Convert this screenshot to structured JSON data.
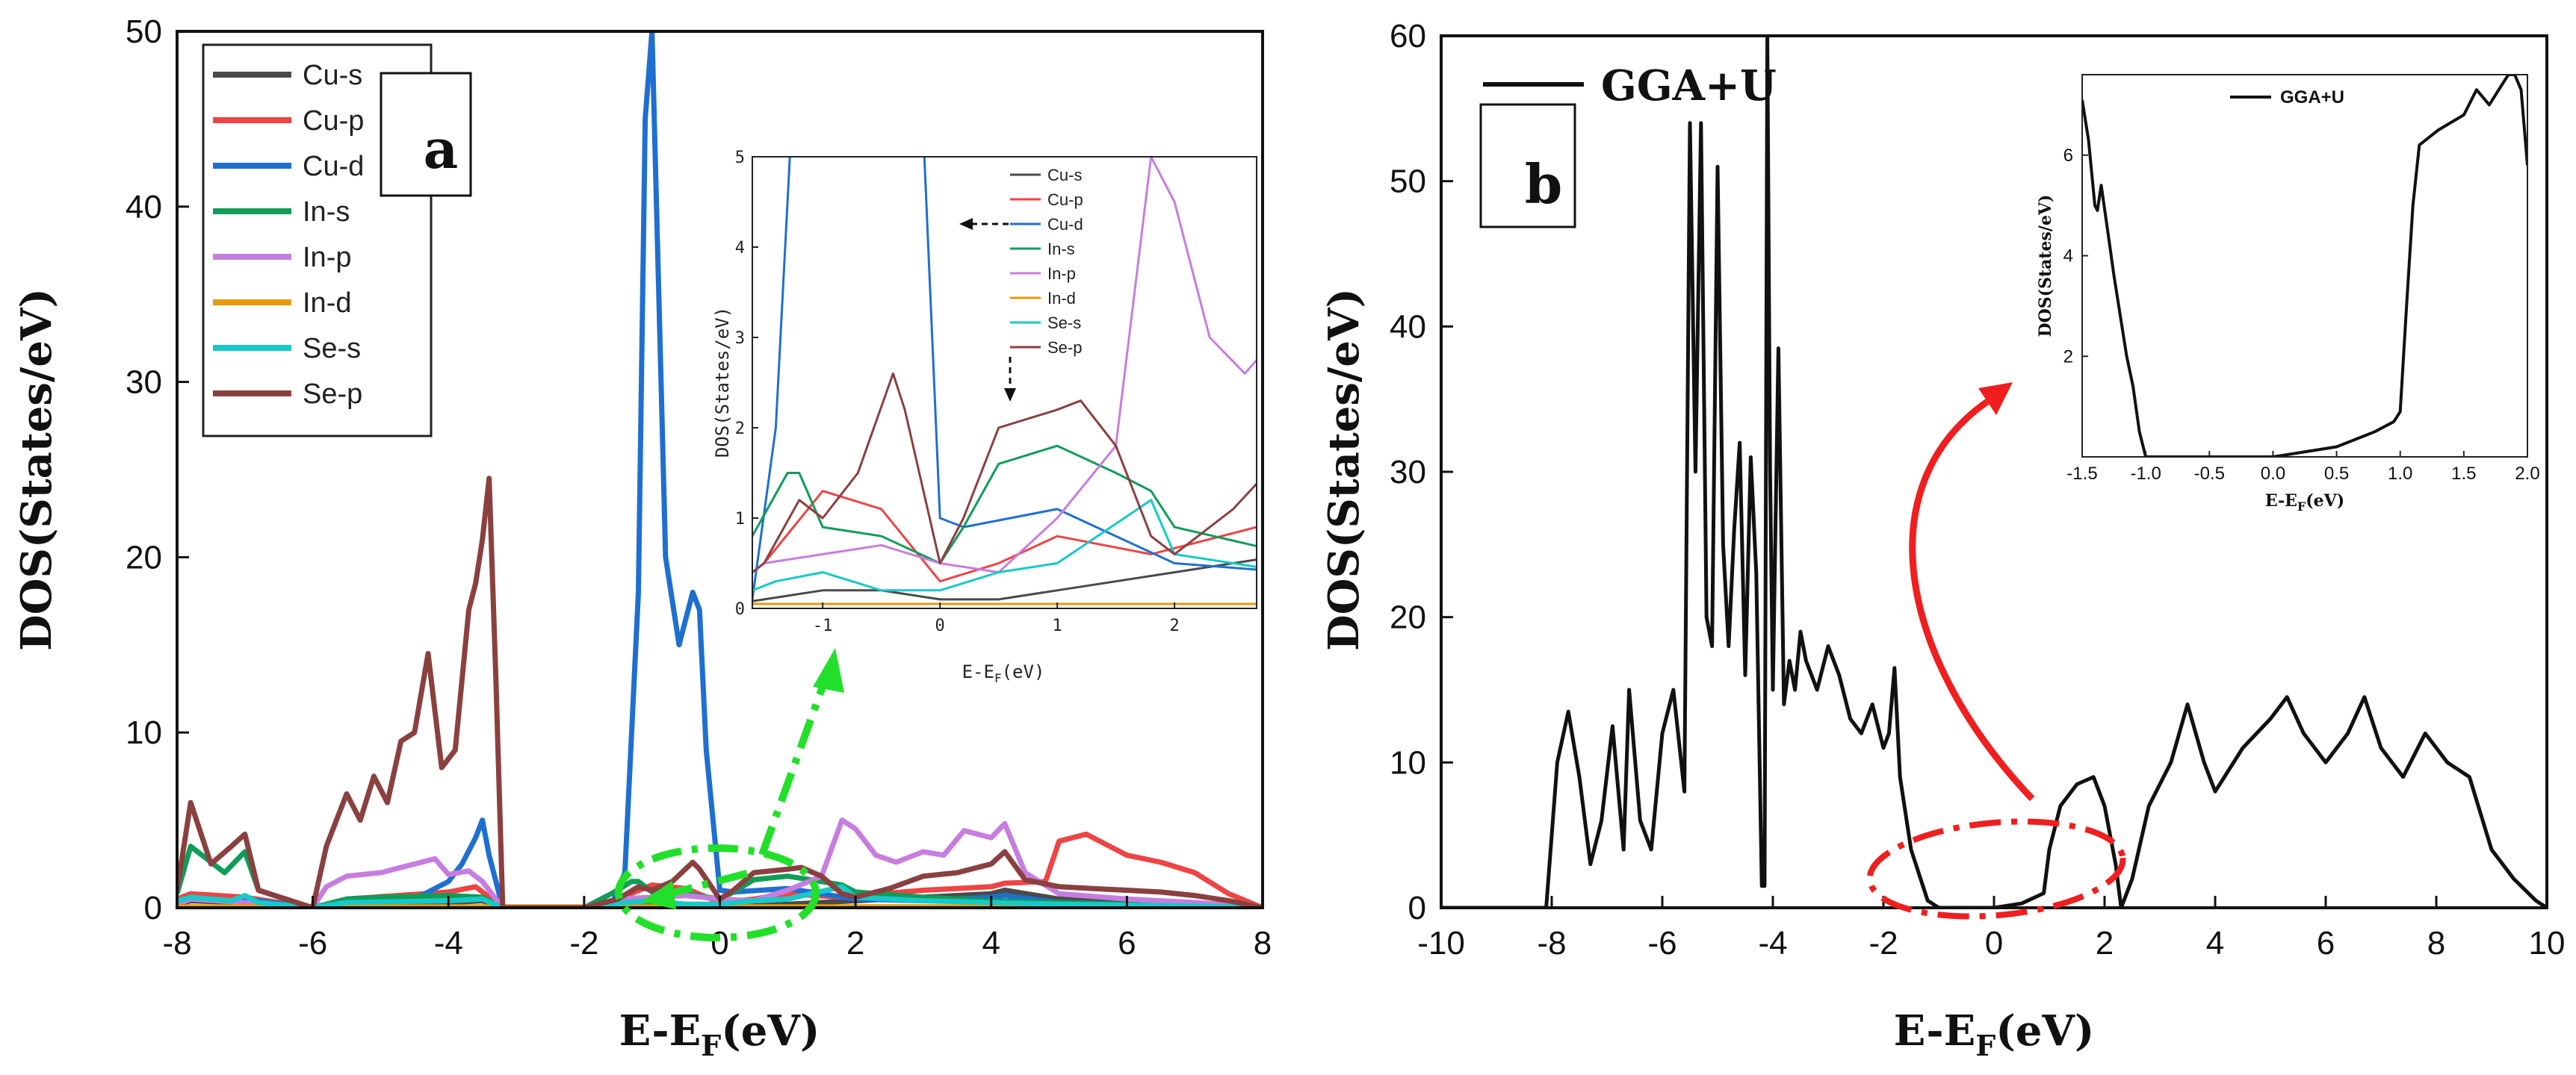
{
  "chart_data": [
    {
      "id": "panel-a",
      "type": "line",
      "panel_label": "a",
      "xlabel": "E-E",
      "xlabel_sub": "F",
      "xlabel_unit": "(eV)",
      "ylabel": "DOS(States/eV)",
      "xlim": [
        -8,
        8
      ],
      "ylim": [
        0,
        50
      ],
      "xticks": [
        -8,
        -6,
        -4,
        -2,
        0,
        2,
        4,
        6,
        8
      ],
      "yticks": [
        0,
        10,
        20,
        30,
        40,
        50
      ],
      "legend_position": "top-left",
      "series": [
        {
          "name": "Cu-s",
          "color": "#4a4a4a",
          "x": [
            -8,
            -7.8,
            -7,
            -6,
            -5.5,
            -4,
            -3.5,
            -3.2,
            -2,
            -1.5,
            -1,
            -0.5,
            0,
            0.5,
            1,
            2,
            3,
            4,
            4.2,
            5,
            6,
            7,
            8
          ],
          "y": [
            0.2,
            0.4,
            0.3,
            0,
            0.3,
            0.3,
            0.4,
            0,
            0,
            0.1,
            0.2,
            0.2,
            0.1,
            0.1,
            0.2,
            0.4,
            0.6,
            0.8,
            1.0,
            0.5,
            0.4,
            0.3,
            0
          ]
        },
        {
          "name": "Cu-p",
          "color": "#ef4444",
          "x": [
            -8,
            -7.8,
            -7,
            -6,
            -5.5,
            -4,
            -3.6,
            -3.2,
            -2,
            -1.5,
            -1,
            -0.5,
            0,
            0.5,
            1,
            1.8,
            3,
            4,
            4.2,
            4.8,
            5,
            5.4,
            6,
            6.5,
            7,
            7.5,
            8
          ],
          "y": [
            0.5,
            0.8,
            0.6,
            0,
            0.5,
            0.9,
            1.2,
            0,
            0,
            0.5,
            1.3,
            1.1,
            0.3,
            0.5,
            0.8,
            0.6,
            1.0,
            1.2,
            1.4,
            1.5,
            3.8,
            4.2,
            3.0,
            2.6,
            2.0,
            0.8,
            0
          ]
        },
        {
          "name": "Cu-d",
          "color": "#1f6fd1",
          "x": [
            -8,
            -7.8,
            -7.2,
            -7,
            -6,
            -5.6,
            -4.5,
            -4,
            -3.8,
            -3.6,
            -3.5,
            -3.4,
            -3.2,
            -2,
            -1.6,
            -1.4,
            -1.2,
            -1.1,
            -1.0,
            -0.9,
            -0.8,
            -0.6,
            -0.4,
            -0.3,
            -0.2,
            0,
            0.2,
            1,
            2,
            3,
            4,
            4.2,
            5,
            6,
            7,
            8
          ],
          "y": [
            0.3,
            0.5,
            0.4,
            0.5,
            0,
            0.4,
            0.5,
            1.5,
            2.5,
            4.0,
            5.0,
            3.0,
            0,
            0,
            0.1,
            2.0,
            18,
            45,
            50,
            35,
            20,
            15,
            18,
            17,
            9,
            1.0,
            0.9,
            1.1,
            0.5,
            0.4,
            0.6,
            0.7,
            0.3,
            0.2,
            0.1,
            0
          ]
        },
        {
          "name": "In-s",
          "color": "#0f9d58",
          "x": [
            -8,
            -7.8,
            -7.3,
            -7,
            -6.8,
            -6,
            -5.5,
            -5,
            -4,
            -3.5,
            -3.2,
            -2,
            -1.6,
            -1.3,
            -1.2,
            -1,
            -0.5,
            0,
            0.2,
            0.5,
            1,
            1.5,
            1.8,
            2,
            3,
            4,
            5,
            6,
            7,
            8
          ],
          "y": [
            0.8,
            3.5,
            2.0,
            3.2,
            1.0,
            0,
            0.5,
            0.6,
            0.7,
            0.6,
            0,
            0,
            0.8,
            1.5,
            1.5,
            0.9,
            0.8,
            0.5,
            0.9,
            1.6,
            1.8,
            1.5,
            1.3,
            0.9,
            0.6,
            0.4,
            0.3,
            0.2,
            0.1,
            0
          ]
        },
        {
          "name": "In-p",
          "color": "#c77de0",
          "x": [
            -8,
            -7.8,
            -7,
            -6,
            -5.8,
            -5.5,
            -5,
            -4.5,
            -4.2,
            -4,
            -3.7,
            -3.5,
            -3.2,
            -2,
            -1.5,
            -1,
            -0.5,
            0,
            0.5,
            1,
            1.5,
            1.8,
            2,
            2.3,
            2.6,
            3,
            3.3,
            3.6,
            4,
            4.2,
            4.5,
            5,
            6,
            7,
            8
          ],
          "y": [
            0.2,
            0.5,
            0.3,
            0,
            1.2,
            1.8,
            2.0,
            2.5,
            2.8,
            1.9,
            2.1,
            1.5,
            0,
            0,
            0.5,
            0.6,
            0.7,
            0.5,
            0.4,
            1.0,
            1.8,
            5.0,
            4.5,
            3.0,
            2.6,
            3.2,
            3.0,
            4.4,
            4.0,
            4.8,
            2.0,
            0.8,
            0.5,
            0.3,
            0
          ]
        },
        {
          "name": "In-d",
          "color": "#e69a0a",
          "x": [
            -8,
            8
          ],
          "y": [
            0.05,
            0.05
          ]
        },
        {
          "name": "Se-s",
          "color": "#17c9c9",
          "x": [
            -8,
            -7.8,
            -7.2,
            -7,
            -6.8,
            -6,
            -5.5,
            -4,
            -3.5,
            -3.2,
            -2,
            -1.4,
            -1,
            -0.5,
            0,
            0.5,
            1,
            1.8,
            2,
            3,
            4,
            5,
            6,
            7,
            8
          ],
          "y": [
            0.4,
            0.6,
            0.4,
            0.7,
            0.3,
            0,
            0.3,
            0.4,
            0.5,
            0,
            0,
            0.3,
            0.4,
            0.2,
            0.2,
            0.4,
            0.5,
            1.2,
            0.6,
            0.4,
            0.3,
            0.2,
            0.15,
            0.1,
            0
          ]
        },
        {
          "name": "Se-p",
          "color": "#8b4040",
          "x": [
            -8,
            -7.8,
            -7.5,
            -7.2,
            -7,
            -6.8,
            -6,
            -5.8,
            -5.5,
            -5.3,
            -5.1,
            -4.9,
            -4.7,
            -4.5,
            -4.3,
            -4.1,
            -3.9,
            -3.7,
            -3.6,
            -3.5,
            -3.4,
            -3.3,
            -3.2,
            -2,
            -1.5,
            -1.2,
            -1,
            -0.7,
            -0.4,
            -0.3,
            0,
            0.2,
            0.5,
            1,
            1.2,
            1.5,
            1.8,
            2,
            2.5,
            3,
            3.5,
            4,
            4.2,
            4.5,
            5,
            5.5,
            6,
            6.5,
            7,
            7.5,
            8
          ],
          "y": [
            1.0,
            6.0,
            2.5,
            3.5,
            4.2,
            1.0,
            0,
            3.5,
            6.5,
            5.0,
            7.5,
            6.0,
            9.5,
            10,
            14.5,
            8,
            9,
            17,
            18.5,
            21,
            24.5,
            13,
            0,
            0,
            0.5,
            1.2,
            1.0,
            1.5,
            2.6,
            2.2,
            0.5,
            1.0,
            2.0,
            2.2,
            2.3,
            1.8,
            0.8,
            0.6,
            1.1,
            1.8,
            2.0,
            2.5,
            3.2,
            1.6,
            1.2,
            1.1,
            1.0,
            0.9,
            0.7,
            0.4,
            0
          ]
        }
      ],
      "inset": {
        "xlabel": "E-E",
        "xlabel_sub": "F",
        "xlabel_unit": "(eV)",
        "ylabel": "DOS(States/eV)",
        "xlim": [
          -1.6,
          2.7
        ],
        "ylim": [
          0,
          5
        ],
        "xticks": [
          -1,
          0,
          1,
          2
        ],
        "yticks": [
          0,
          1,
          2,
          3,
          4,
          5
        ],
        "legend_position": "top-right"
      },
      "annotations": [
        "inset magnification of -1.5 to 2.5 eV region (green dashed ellipse and arrow)",
        "dashed arrow pointing left at Cu-d",
        "dashed arrow pointing down at Se-p peak"
      ]
    },
    {
      "id": "panel-b",
      "type": "line",
      "panel_label": "b",
      "xlabel": "E-E",
      "xlabel_sub": "F",
      "xlabel_unit": "(eV)",
      "ylabel": "DOS(States/eV)",
      "xlim": [
        -10,
        10
      ],
      "ylim": [
        0,
        60
      ],
      "xticks": [
        -10,
        -8,
        -6,
        -4,
        -2,
        0,
        2,
        4,
        6,
        8,
        10
      ],
      "yticks": [
        0,
        10,
        20,
        30,
        40,
        50,
        60
      ],
      "legend_position": "top-left",
      "series": [
        {
          "name": "GGA+U",
          "color": "#111111",
          "x": [
            -10,
            -8.1,
            -7.9,
            -7.7,
            -7.5,
            -7.3,
            -7.1,
            -6.9,
            -6.7,
            -6.6,
            -6.4,
            -6.2,
            -6.0,
            -5.8,
            -5.6,
            -5.5,
            -5.4,
            -5.3,
            -5.2,
            -5.1,
            -5.0,
            -4.9,
            -4.8,
            -4.7,
            -4.6,
            -4.5,
            -4.4,
            -4.3,
            -4.2,
            -4.15,
            -4.1,
            -4.05,
            -4.0,
            -3.9,
            -3.8,
            -3.7,
            -3.6,
            -3.5,
            -3.4,
            -3.2,
            -3.0,
            -2.8,
            -2.6,
            -2.4,
            -2.2,
            -2.0,
            -1.9,
            -1.8,
            -1.7,
            -1.5,
            -1.2,
            -1.0,
            0,
            0.5,
            0.9,
            1.0,
            1.2,
            1.5,
            1.8,
            2.0,
            2.2,
            2.3,
            2.5,
            2.8,
            3.2,
            3.5,
            3.8,
            4.0,
            4.5,
            5.0,
            5.3,
            5.6,
            6.0,
            6.4,
            6.7,
            7.0,
            7.4,
            7.8,
            8.2,
            8.6,
            9.0,
            9.4,
            9.8,
            10
          ],
          "y": [
            0,
            0,
            10,
            13.5,
            9,
            3,
            6,
            12.5,
            4,
            15,
            6,
            4,
            12,
            15,
            8,
            54,
            30,
            54,
            20,
            18,
            51,
            25,
            18,
            26,
            32,
            16,
            31,
            23,
            1.5,
            1.5,
            60,
            30,
            15,
            38.5,
            14,
            17,
            15,
            19,
            17,
            15,
            18,
            16,
            13,
            12,
            14,
            11,
            12,
            16.5,
            9,
            4,
            0.5,
            0,
            0,
            0.3,
            1.0,
            4,
            7,
            8.5,
            9,
            7,
            3,
            0,
            2,
            7,
            10,
            14,
            10,
            8,
            11,
            13,
            14.5,
            12,
            10,
            12,
            14.5,
            11,
            9,
            12,
            10,
            9,
            4,
            2,
            0.5,
            0
          ]
        }
      ],
      "inset": {
        "legend_entry": "GGA+U",
        "xlabel": "E-E",
        "xlabel_sub": "F",
        "xlabel_unit": "(eV)",
        "ylabel": "DOS(States/eV)",
        "xlim": [
          -1.5,
          2.0
        ],
        "ylim": [
          0,
          7.6
        ],
        "xticks": [
          -1.5,
          -1.0,
          -0.5,
          0.0,
          0.5,
          1.0,
          1.5,
          2.0
        ],
        "xtick_labels": [
          "-1.5",
          "-1.0",
          "-0.5",
          "0.0",
          "0.5",
          "1.0",
          "1.5",
          "2.0"
        ],
        "yticks": [
          2,
          4,
          6
        ],
        "series_x": [
          -1.5,
          -1.45,
          -1.4,
          -1.38,
          -1.35,
          -1.3,
          -1.25,
          -1.2,
          -1.15,
          -1.1,
          -1.05,
          -1.0,
          0,
          0.5,
          0.8,
          0.95,
          1.0,
          1.05,
          1.1,
          1.15,
          1.2,
          1.3,
          1.5,
          1.6,
          1.7,
          1.8,
          1.85,
          1.9,
          1.95,
          2.0
        ],
        "series_y": [
          7.1,
          6.3,
          5.0,
          4.9,
          5.4,
          4.5,
          3.6,
          2.8,
          2.0,
          1.4,
          0.5,
          0,
          0,
          0.2,
          0.5,
          0.7,
          0.9,
          3,
          5,
          6.2,
          6.3,
          6.5,
          6.8,
          7.3,
          7.0,
          7.4,
          7.6,
          7.6,
          7.3,
          5.8
        ]
      },
      "annotations": [
        "red dashed ellipse around band gap region",
        "red curved arrow to inset"
      ]
    }
  ]
}
